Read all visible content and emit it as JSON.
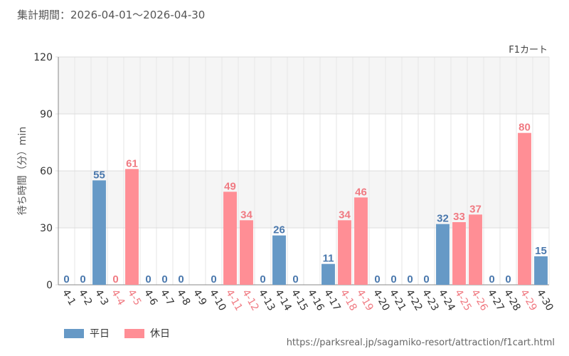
{
  "period_label": "集計期間：2026-04-01～2026-04-30",
  "source_url": "https://parksreal.jp/sagamiko-resort/attraction/f1cart.html",
  "colors": {
    "weekday": "#6699c6",
    "holiday": "#ff8e95",
    "weekday_label": "#4a78ad",
    "holiday_label": "#f07a82"
  },
  "chart_data": {
    "type": "bar",
    "series_label": "F1カート",
    "ylabel": "待ち時間（分）min",
    "ylim": [
      0,
      120
    ],
    "yticks": [
      0,
      30,
      60,
      90,
      120
    ],
    "legend": [
      {
        "name": "平日",
        "key": "weekday"
      },
      {
        "name": "休日",
        "key": "holiday"
      }
    ],
    "legend_position": "bottom-left",
    "grid": true,
    "categories": [
      "4-1",
      "4-2",
      "4-3",
      "4-4",
      "4-5",
      "4-6",
      "4-7",
      "4-8",
      "4-9",
      "4-10",
      "4-11",
      "4-12",
      "4-13",
      "4-14",
      "4-15",
      "4-16",
      "4-17",
      "4-18",
      "4-19",
      "4-20",
      "4-21",
      "4-22",
      "4-23",
      "4-24",
      "4-25",
      "4-26",
      "4-27",
      "4-28",
      "4-29",
      "4-30"
    ],
    "values": [
      0,
      0,
      55,
      0,
      61,
      0,
      0,
      0,
      null,
      0,
      49,
      34,
      0,
      26,
      0,
      null,
      11,
      34,
      46,
      0,
      0,
      0,
      0,
      32,
      33,
      37,
      0,
      0,
      80,
      15
    ],
    "day_type": [
      "weekday",
      "weekday",
      "weekday",
      "holiday",
      "holiday",
      "weekday",
      "weekday",
      "weekday",
      "weekday",
      "weekday",
      "holiday",
      "holiday",
      "weekday",
      "weekday",
      "weekday",
      "weekday",
      "weekday",
      "holiday",
      "holiday",
      "weekday",
      "weekday",
      "weekday",
      "weekday",
      "weekday",
      "holiday",
      "holiday",
      "weekday",
      "weekday",
      "holiday",
      "weekday"
    ]
  }
}
